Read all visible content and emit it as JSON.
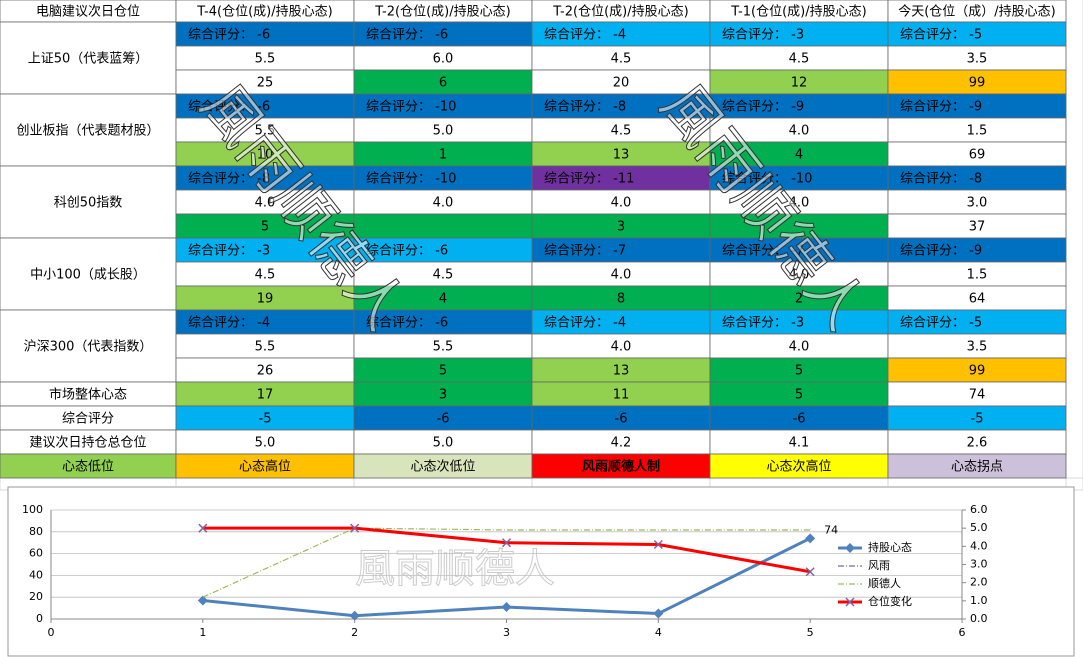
{
  "header": [
    "电脑建议次日仓位",
    "T-4(仓位(成)/持股心态)",
    "T-2(仓位(成)/持股心态)",
    "T-2(仓位(成)/持股心态)",
    "T-1(仓位(成)/持股心态)",
    "今天(仓位（成）/持股心态)"
  ],
  "groups": [
    {
      "label": "上证50（代表蓝筹）",
      "scores": [
        {
          "text": "综合评分： -6",
          "color": "#0070c0"
        },
        {
          "text": "综合评分： -6",
          "color": "#0070c0"
        },
        {
          "text": "综合评分： -4",
          "color": "#00b0f0"
        },
        {
          "text": "综合评分： -3",
          "color": "#00b0f0"
        },
        {
          "text": "综合评分： -5",
          "color": "#00b0f0"
        }
      ],
      "positions": [
        "5.5",
        "6.0",
        "4.5",
        "4.5",
        "3.5"
      ],
      "moods": [
        {
          "text": "25",
          "color": "#ffffff"
        },
        {
          "text": "6",
          "color": "#00b050"
        },
        {
          "text": "20",
          "color": "#ffffff"
        },
        {
          "text": "12",
          "color": "#92d050"
        },
        {
          "text": "99",
          "color": "#ffc000"
        }
      ]
    },
    {
      "label": "创业板指（代表题材股）",
      "scores": [
        {
          "text": "综合评分： -6",
          "color": "#0070c0"
        },
        {
          "text": "综合评分： -10",
          "color": "#0070c0"
        },
        {
          "text": "综合评分： -8",
          "color": "#0070c0"
        },
        {
          "text": "综合评分： -9",
          "color": "#0070c0"
        },
        {
          "text": "综合评分： -9",
          "color": "#0070c0"
        }
      ],
      "positions": [
        "5.5",
        "5.0",
        "4.5",
        "4.0",
        "1.5"
      ],
      "moods": [
        {
          "text": "10",
          "color": "#92d050"
        },
        {
          "text": "1",
          "color": "#00b050"
        },
        {
          "text": "13",
          "color": "#92d050"
        },
        {
          "text": "4",
          "color": "#00b050"
        },
        {
          "text": "69",
          "color": "#ffffff"
        }
      ]
    },
    {
      "label": "科创50指数",
      "scores": [
        {
          "text": "综合评分： -8",
          "color": "#0070c0"
        },
        {
          "text": "综合评分： -10",
          "color": "#0070c0"
        },
        {
          "text": "综合评分： -11",
          "color": "#7030a0"
        },
        {
          "text": "综合评分： -10",
          "color": "#0070c0"
        },
        {
          "text": "综合评分： -8",
          "color": "#0070c0"
        }
      ],
      "positions": [
        "4.0",
        "4.0",
        "4.0",
        "4.0",
        "3.0"
      ],
      "moods": [
        {
          "text": "5",
          "color": "#00b050"
        },
        {
          "color": "#00b050"
        },
        {
          "text": "3",
          "color": "#00b050"
        },
        {
          "color": "#00b050"
        },
        {
          "text": "37",
          "color": "#ffffff"
        }
      ]
    },
    {
      "label": "中小100（成长股）",
      "scores": [
        {
          "text": "综合评分： -3",
          "color": "#00b0f0"
        },
        {
          "text": "综合评分： -6",
          "color": "#00b0f0"
        },
        {
          "text": "综合评分： -7",
          "color": "#0070c0"
        },
        {
          "text": "综合评分： -7",
          "color": "#0070c0"
        },
        {
          "text": "综合评分： -9",
          "color": "#0070c0"
        }
      ],
      "positions": [
        "4.5",
        "4.5",
        "4.0",
        "4.0",
        "1.5"
      ],
      "moods": [
        {
          "text": "19",
          "color": "#92d050"
        },
        {
          "text": "4",
          "color": "#00b050"
        },
        {
          "text": "8",
          "color": "#00b050"
        },
        {
          "text": "2",
          "color": "#00b050"
        },
        {
          "text": "64",
          "color": "#ffffff"
        }
      ]
    },
    {
      "label": "沪深300（代表指数）",
      "scores": [
        {
          "text": "综合评分： -4",
          "color": "#0070c0"
        },
        {
          "text": "综合评分： -6",
          "color": "#0070c0"
        },
        {
          "text": "综合评分： -4",
          "color": "#00b0f0"
        },
        {
          "text": "综合评分： -3",
          "color": "#00b0f0"
        },
        {
          "text": "综合评分： -5",
          "color": "#00b0f0"
        }
      ],
      "positions": [
        "5.5",
        "5.5",
        "4.0",
        "4.0",
        "3.5"
      ],
      "moods": [
        {
          "text": "26",
          "color": "#ffffff"
        },
        {
          "text": "5",
          "color": "#00b050"
        },
        {
          "text": "13",
          "color": "#92d050"
        },
        {
          "text": "5",
          "color": "#00b050"
        },
        {
          "text": "99",
          "color": "#ffc000"
        }
      ]
    }
  ],
  "summary_rows": [
    {
      "label": "市场整体心态",
      "cells": [
        {
          "text": "17",
          "color": "#92d050"
        },
        {
          "text": "3",
          "color": "#00b050"
        },
        {
          "text": "11",
          "color": "#92d050"
        },
        {
          "text": "5",
          "color": "#00b050"
        },
        {
          "text": "74",
          "color": "#ffffff"
        }
      ]
    },
    {
      "label": "综合评分",
      "cells": [
        {
          "text": "-5",
          "color": "#00b0f0"
        },
        {
          "text": "-6",
          "color": "#0070c0"
        },
        {
          "text": "-6",
          "color": "#0070c0"
        },
        {
          "text": "-6",
          "color": "#0070c0"
        },
        {
          "text": "-5",
          "color": "#00b0f0"
        }
      ]
    },
    {
      "label": "建议次日持仓总仓位",
      "cells": [
        {
          "text": "5.0",
          "color": "#ffffff"
        },
        {
          "text": "5.0",
          "color": "#ffffff"
        },
        {
          "text": "4.2",
          "color": "#ffffff"
        },
        {
          "text": "4.1",
          "color": "#ffffff"
        },
        {
          "text": "2.6",
          "color": "#ffffff"
        }
      ]
    }
  ],
  "legend": [
    {
      "text": "心态低位",
      "color": "#92d050"
    },
    {
      "text": "心态高位",
      "color": "#ffc000"
    },
    {
      "text": "心态次低位",
      "color": "#d8e4bc"
    },
    {
      "text": "风雨顺德人制",
      "color": "#ff0000"
    },
    {
      "text": "心态次高位",
      "color": "#ffff00"
    },
    {
      "text": "心态拐点",
      "color": "#ccc0da"
    }
  ],
  "watermark": "風雨顺德人",
  "chart_data": {
    "type": "line",
    "x": [
      1,
      2,
      3,
      4,
      5
    ],
    "xlim": [
      0,
      6
    ],
    "xticks": [
      0,
      1,
      2,
      3,
      4,
      5,
      6
    ],
    "ylim": [
      0,
      100
    ],
    "yticks": [
      0,
      20,
      40,
      60,
      80,
      100
    ],
    "y2lim": [
      0,
      6
    ],
    "y2ticks": [
      {
        "value": 0,
        "label": "0.0"
      },
      {
        "value": 1,
        "label": "1.0"
      },
      {
        "value": 2,
        "label": "2.0"
      },
      {
        "value": 3,
        "label": "3.0"
      },
      {
        "value": 4,
        "label": "4.0"
      },
      {
        "value": 5,
        "label": "5.0"
      },
      {
        "value": 6,
        "label": "6.0"
      }
    ],
    "grid": true,
    "legend": "right",
    "series": [
      {
        "name": "持股心态",
        "color": "#4f81bd",
        "marker": "diamond",
        "values": [
          17,
          3,
          11,
          5,
          74
        ],
        "value_labels": [
          null,
          null,
          null,
          null,
          "74"
        ]
      },
      {
        "name": "风雨",
        "color": "#8064a2",
        "dash": "6 2 1 2",
        "axis": "y2",
        "values": [
          null,
          null,
          null,
          null,
          null
        ]
      },
      {
        "name": "顺德人",
        "color": "#9bbb59",
        "dash": "6 2 1 2",
        "axis": "y2",
        "values": [
          1.2,
          5.0,
          4.9,
          4.9,
          4.9
        ]
      },
      {
        "name": "仓位变化",
        "color": "#ff0000",
        "marker": "x",
        "axis": "y2",
        "values": [
          5.0,
          5.0,
          4.2,
          4.1,
          2.6
        ]
      }
    ]
  }
}
